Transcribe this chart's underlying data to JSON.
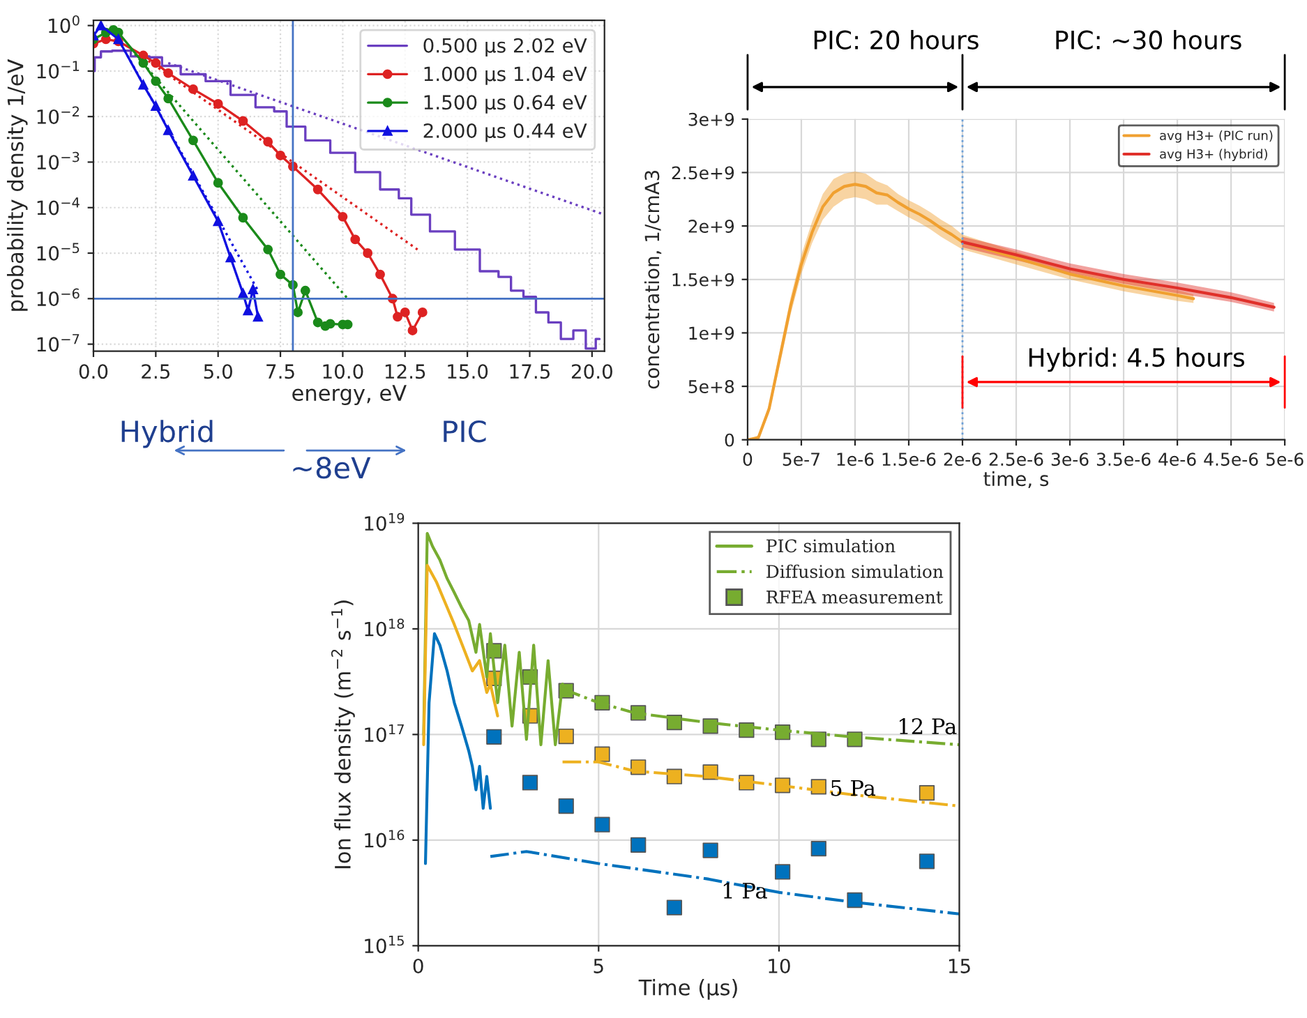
{
  "chart_data": [
    {
      "type": "line",
      "xlabel": "energy, eV",
      "ylabel": "probability density 1/eV",
      "log": "y",
      "grid": true,
      "legend": "top right",
      "xlim": [
        0,
        20.5
      ],
      "ylim": [
        7e-08,
        1.3
      ],
      "xticks": [
        {
          "value": 0,
          "label": "0.0"
        },
        {
          "value": 2.5,
          "label": "2.5"
        },
        {
          "value": 5,
          "label": "5.0"
        },
        {
          "value": 7.5,
          "label": "7.5"
        },
        {
          "value": 10,
          "label": "10.0"
        },
        {
          "value": 12.5,
          "label": "12.5"
        },
        {
          "value": 15,
          "label": "15.0"
        },
        {
          "value": 17.5,
          "label": "17.5"
        },
        {
          "value": 20,
          "label": "20.0"
        }
      ],
      "yticks": [
        {
          "value": 1e-07,
          "label": "10$^{−7}$"
        },
        {
          "value": 1e-06,
          "label": "10$^{−6}$"
        },
        {
          "value": 1e-05,
          "label": "10$^{−5}$"
        },
        {
          "value": 0.0001,
          "label": "10$^{−4}$"
        },
        {
          "value": 0.001,
          "label": "10$^{−3}$"
        },
        {
          "value": 0.01,
          "label": "10$^{−2}$"
        },
        {
          "value": 0.1,
          "label": "10$^{−1}$"
        },
        {
          "value": 1,
          "label": "10$^{0}$"
        }
      ],
      "ref_lines": [
        {
          "axis": "x",
          "value": 8,
          "color": "#4472c4"
        },
        {
          "axis": "y",
          "value": 1e-06,
          "color": "#4472c4"
        }
      ],
      "annotations": [
        "Hybrid",
        "PIC",
        "~8eV"
      ],
      "series": [
        {
          "name": "0.500 μs 2.02 eV",
          "type": "step",
          "color": "#6a3fc0",
          "marker": "none",
          "x": [
            0,
            0.1,
            0.5,
            1,
            2,
            2.5,
            3,
            4,
            5,
            6,
            7,
            7.5,
            8,
            9,
            10,
            11,
            12,
            12.5,
            13,
            14,
            15,
            16,
            16.5,
            17,
            17.5,
            18,
            18.5,
            19,
            19.5,
            20,
            20.3
          ],
          "values": [
            0.1,
            0.2,
            0.27,
            0.28,
            0.21,
            0.2,
            0.13,
            0.085,
            0.06,
            0.03,
            0.016,
            0.013,
            0.006,
            0.003,
            0.0016,
            0.0006,
            0.00025,
            0.00016,
            7e-05,
            3e-05,
            1.2e-05,
            4e-06,
            3e-06,
            1.5e-06,
            1.1e-06,
            5e-07,
            3e-07,
            1.3e-07,
            2e-07,
            8e-08,
            1.3e-07
          ]
        },
        {
          "name": "1.000 μs 1.04 eV",
          "color": "#dd2222",
          "marker": "circle",
          "x": [
            0,
            0.5,
            1,
            2,
            2.5,
            3,
            4,
            5,
            6,
            7,
            7.5,
            8,
            9,
            10,
            10.5,
            11,
            11.5,
            12,
            12.2,
            12.5,
            12.8,
            13.2
          ],
          "values": [
            0.4,
            0.5,
            0.45,
            0.22,
            0.15,
            0.09,
            0.04,
            0.019,
            0.008,
            0.0028,
            0.0014,
            0.0008,
            0.00025,
            6.3e-05,
            2e-05,
            1e-05,
            3.4e-06,
            1e-06,
            4e-07,
            5e-07,
            2e-07,
            5e-07
          ]
        },
        {
          "name": "1.500 μs 0.64 eV",
          "color": "#1a8a1a",
          "marker": "circle",
          "x": [
            0,
            0.5,
            0.8,
            1,
            2,
            2.5,
            3,
            4,
            5,
            6,
            7,
            7.5,
            8,
            8.2,
            8.5,
            9,
            9.3,
            9.5,
            10,
            10.2
          ],
          "values": [
            0.5,
            0.7,
            0.8,
            0.7,
            0.15,
            0.06,
            0.025,
            0.003,
            0.00035,
            6e-05,
            1.2e-05,
            3.4e-06,
            2e-06,
            5e-07,
            1.5e-06,
            3e-07,
            2.5e-07,
            2.8e-07,
            2.7e-07,
            2.7e-07
          ]
        },
        {
          "name": "2.000 μs 0.44 eV",
          "color": "#1010e0",
          "marker": "triangle",
          "x": [
            0,
            0.3,
            1,
            2,
            2.5,
            3,
            4,
            5,
            5.5,
            6,
            6.2,
            6.4,
            6.6
          ],
          "values": [
            0.6,
            1.0,
            0.5,
            0.05,
            0.017,
            0.005,
            0.0005,
            5e-05,
            8e-06,
            1.3e-06,
            5.5e-07,
            1.6e-06,
            4e-07
          ]
        },
        {
          "color": "#6a3fc0",
          "line_style": "dotted",
          "marker": "none",
          "x": [
            3,
            20.5
          ],
          "values": [
            0.15,
            7e-05
          ]
        },
        {
          "color": "#dd2222",
          "line_style": "dotted",
          "marker": "none",
          "x": [
            2,
            13
          ],
          "values": [
            0.2,
            1.2e-05
          ]
        },
        {
          "color": "#1a8a1a",
          "line_style": "dotted",
          "marker": "none",
          "x": [
            1.5,
            10.2
          ],
          "values": [
            0.3,
            1e-06
          ]
        },
        {
          "color": "#1010e0",
          "line_style": "dotted",
          "marker": "none",
          "x": [
            1,
            6.6
          ],
          "values": [
            0.5,
            1.5e-06
          ]
        }
      ]
    },
    {
      "type": "line",
      "xlabel": "time, s",
      "ylabel": "concentration, 1/cmA3",
      "grid": true,
      "legend": "top right",
      "xlim": [
        0,
        5e-06
      ],
      "ylim": [
        0,
        3000000000.0
      ],
      "xticks": [
        0,
        {
          "value": 5e-07,
          "label": "5e-7"
        },
        {
          "value": 1e-06,
          "label": "1e-6"
        },
        {
          "value": 1.5e-06,
          "label": "1.5e-6"
        },
        {
          "value": 2e-06,
          "label": "2e-6"
        },
        {
          "value": 2.5e-06,
          "label": "2.5e-6"
        },
        {
          "value": 3e-06,
          "label": "3e-6"
        },
        {
          "value": 3.5e-06,
          "label": "3.5e-6"
        },
        {
          "value": 4e-06,
          "label": "4e-6"
        },
        {
          "value": 4.5e-06,
          "label": "4.5e-6"
        },
        {
          "value": 5e-06,
          "label": "5e-6"
        }
      ],
      "yticks": [
        0,
        {
          "value": 500000000.0,
          "label": "5e+8"
        },
        {
          "value": 1000000000.0,
          "label": "1e+9"
        },
        {
          "value": 1500000000.0,
          "label": "1.5e+9"
        },
        {
          "value": 2000000000.0,
          "label": "2e+9"
        },
        {
          "value": 2500000000.0,
          "label": "2.5e+9"
        },
        {
          "value": 3000000000.0,
          "label": "3e+9"
        }
      ],
      "ref_lines": [
        {
          "axis": "x",
          "value": 2e-06,
          "color": "#6a9fd8",
          "line_style": "dotted"
        }
      ],
      "annotations": [
        "PIC: 20 hours",
        "PIC: ~30 hours",
        "Hybrid: 4.5 hours"
      ],
      "series": [
        {
          "name": "avg H3+ (PIC run)",
          "color": "#f0a030",
          "x": [
            0,
            1e-07,
            2e-07,
            3e-07,
            4e-07,
            5e-07,
            6e-07,
            7e-07,
            8e-07,
            9e-07,
            1e-06,
            1.1e-06,
            1.2e-06,
            1.3e-06,
            1.4e-06,
            1.5e-06,
            1.6e-06,
            1.7e-06,
            1.8e-06,
            1.9e-06,
            2e-06,
            2.5e-06,
            3e-06,
            3.5e-06,
            4e-06,
            4.15e-06
          ],
          "values": [
            0,
            20000000.0,
            290000000.0,
            770000000.0,
            1250000000.0,
            1640000000.0,
            1940000000.0,
            2180000000.0,
            2310000000.0,
            2370000000.0,
            2390000000.0,
            2370000000.0,
            2310000000.0,
            2290000000.0,
            2220000000.0,
            2160000000.0,
            2110000000.0,
            2050000000.0,
            1980000000.0,
            1920000000.0,
            1850000000.0,
            1700000000.0,
            1550000000.0,
            1440000000.0,
            1350000000.0,
            1320000000.0
          ],
          "lower": [
            0,
            0,
            250000000.0,
            700000000.0,
            1170000000.0,
            1550000000.0,
            1840000000.0,
            2060000000.0,
            2180000000.0,
            2250000000.0,
            2270000000.0,
            2250000000.0,
            2200000000.0,
            2200000000.0,
            2140000000.0,
            2080000000.0,
            2030000000.0,
            1970000000.0,
            1900000000.0,
            1840000000.0,
            1780000000.0,
            1640000000.0,
            1500000000.0,
            1390000000.0,
            1300000000.0,
            1280000000.0
          ],
          "upper": [
            0,
            40000000.0,
            330000000.0,
            840000000.0,
            1330000000.0,
            1730000000.0,
            2040000000.0,
            2300000000.0,
            2440000000.0,
            2490000000.0,
            2510000000.0,
            2490000000.0,
            2420000000.0,
            2380000000.0,
            2300000000.0,
            2240000000.0,
            2190000000.0,
            2130000000.0,
            2060000000.0,
            2000000000.0,
            1920000000.0,
            1760000000.0,
            1600000000.0,
            1490000000.0,
            1400000000.0,
            1360000000.0
          ]
        },
        {
          "name": "avg H3+ (hybrid)",
          "color": "#e0302a",
          "x": [
            2e-06,
            2.5e-06,
            3e-06,
            3.5e-06,
            4e-06,
            4.5e-06,
            4.9e-06
          ],
          "values": [
            1850000000.0,
            1730000000.0,
            1600000000.0,
            1500000000.0,
            1420000000.0,
            1330000000.0,
            1240000000.0
          ],
          "lower": [
            1800000000.0,
            1680000000.0,
            1560000000.0,
            1460000000.0,
            1370000000.0,
            1290000000.0,
            1200000000.0
          ],
          "upper": [
            1900000000.0,
            1780000000.0,
            1650000000.0,
            1550000000.0,
            1470000000.0,
            1380000000.0,
            1280000000.0
          ]
        }
      ]
    },
    {
      "type": "line",
      "xlabel": "Time (μs)",
      "ylabel": "Ion flux density (m$^{−2}$ s$^{−1}$)",
      "log": "y",
      "grid": true,
      "legend": "top right",
      "xlim": [
        0,
        15
      ],
      "ylim": [
        1000000000000000.0,
        1e+19
      ],
      "xticks": [
        0,
        5,
        10,
        15
      ],
      "yticks": [
        {
          "value": 1000000000000000.0,
          "label": "10$^{15}$"
        },
        {
          "value": 1e+16,
          "label": "10$^{16}$"
        },
        {
          "value": 1e+17,
          "label": "10$^{17}$"
        },
        {
          "value": 1e+18,
          "label": "10$^{18}$"
        },
        {
          "value": 1e+19,
          "label": "10$^{19}$"
        }
      ],
      "annotations": [
        "12 Pa",
        "5 Pa",
        "1 Pa"
      ],
      "series": [
        {
          "name": "PIC simulation",
          "color": "#77ac30",
          "line_style": "solid",
          "x": [
            0.15,
            0.25,
            0.4,
            0.6,
            0.8,
            1.0,
            1.2,
            1.4,
            1.6,
            1.7,
            1.9,
            2.0,
            2.2,
            2.4,
            2.6,
            2.8,
            3.0,
            3.2,
            3.4,
            3.6,
            3.8,
            4.0
          ],
          "values": [
            1e+17,
            8e+18,
            6e+18,
            4.5e+18,
            3e+18,
            2.2e+18,
            1.6e+18,
            1.2e+18,
            6e+17,
            1.1e+18,
            3.5e+17,
            9e+17,
            2e+17,
            7e+17,
            1.2e+17,
            6e+17,
            9e+16,
            7e+17,
            8e+16,
            5e+17,
            8e+16,
            3e+17
          ]
        },
        {
          "color": "#edb120",
          "line_style": "solid",
          "x": [
            0.15,
            0.25,
            0.5,
            0.8,
            1.0,
            1.3,
            1.5,
            1.7,
            1.9,
            2.0,
            2.2
          ],
          "values": [
            8e+16,
            4e+18,
            2.8e+18,
            1.6e+18,
            1.1e+18,
            6e+17,
            4e+17,
            5e+17,
            2.5e+17,
            3e+17,
            1.5e+17
          ]
        },
        {
          "color": "#0072bd",
          "line_style": "solid",
          "x": [
            0.2,
            0.3,
            0.45,
            0.6,
            0.8,
            1.0,
            1.2,
            1.4,
            1.5,
            1.6,
            1.7,
            1.8,
            1.9,
            2.0
          ],
          "values": [
            6000000000000000.0,
            2e+17,
            9e+17,
            7e+17,
            4e+17,
            2e+17,
            1.2e+17,
            7e+16,
            5e+16,
            3e+16,
            5e+16,
            2e+16,
            4e+16,
            2e+16
          ]
        },
        {
          "name": "Diffusion simulation",
          "color": "#77ac30",
          "line_style": "dashdot",
          "x": [
            4,
            5,
            6,
            8,
            10,
            12,
            15
          ],
          "values": [
            2.7e+17,
            2e+17,
            1.6e+17,
            1.3e+17,
            1.1e+17,
            9.5e+16,
            8e+16
          ]
        },
        {
          "color": "#edb120",
          "line_style": "dashdot",
          "x": [
            4,
            5,
            6,
            8,
            10,
            12,
            15
          ],
          "values": [
            5.5e+16,
            5.5e+16,
            4.5e+16,
            4e+16,
            3.3e+16,
            2.7e+16,
            2.1e+16
          ]
        },
        {
          "color": "#0072bd",
          "line_style": "dashdot",
          "x": [
            2,
            3,
            5,
            8,
            10,
            12,
            15
          ],
          "values": [
            7000000000000000.0,
            7800000000000000.0,
            6000000000000000.0,
            4300000000000000.0,
            3200000000000000.0,
            2600000000000000.0,
            2000000000000000.0
          ]
        },
        {
          "name": "RFEA measurement",
          "type": "scatter",
          "marker": "square",
          "color": "#77ac30",
          "x": [
            2.1,
            3.1,
            4.1,
            5.1,
            6.1,
            7.1,
            8.1,
            9.1,
            10.1,
            11.1,
            12.1
          ],
          "values": [
            6.2e+17,
            3.5e+17,
            2.6e+17,
            2e+17,
            1.6e+17,
            1.3e+17,
            1.2e+17,
            1.1e+17,
            1.05e+17,
            9e+16,
            9e+16
          ]
        },
        {
          "type": "scatter",
          "marker": "square",
          "color": "#edb120",
          "x": [
            2.1,
            3.1,
            4.1,
            5.1,
            6.1,
            7.1,
            8.1,
            9.1,
            10.1,
            11.1,
            14.1
          ],
          "values": [
            3.4e+17,
            1.5e+17,
            9.6e+16,
            6.5e+16,
            4.9e+16,
            4e+16,
            4.4e+16,
            3.5e+16,
            3.3e+16,
            3.2e+16,
            2.8e+16
          ]
        },
        {
          "type": "scatter",
          "marker": "square",
          "color": "#0072bd",
          "x": [
            2.1,
            3.1,
            4.1,
            5.1,
            6.1,
            7.1,
            8.1,
            10.1,
            11.1,
            12.1,
            14.1
          ],
          "values": [
            9.5e+16,
            3.5e+16,
            2.1e+16,
            1.4e+16,
            9000000000000000.0,
            2300000000000000.0,
            8000000000000000.0,
            5000000000000000.0,
            8300000000000000.0,
            2700000000000000.0,
            6300000000000000.0
          ]
        }
      ]
    }
  ]
}
